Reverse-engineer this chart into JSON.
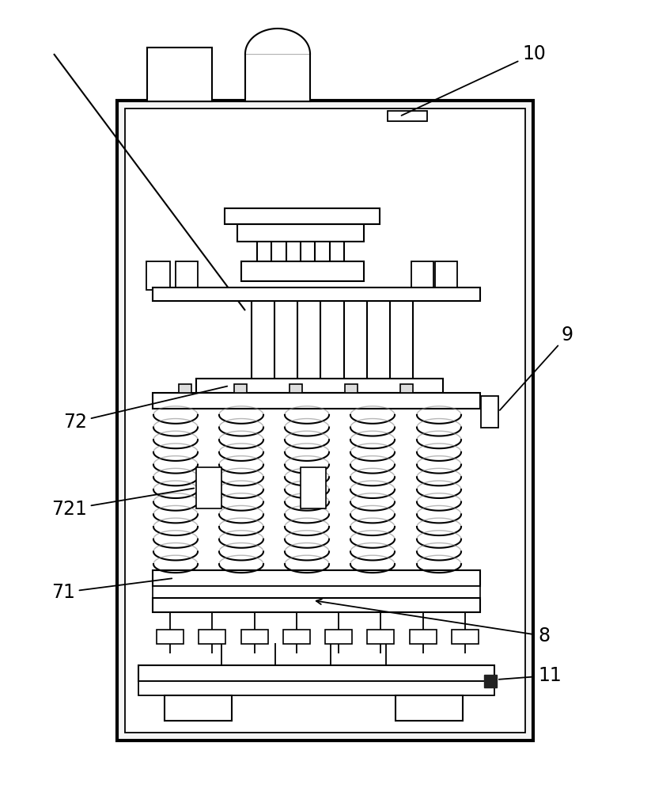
{
  "bg_color": "#ffffff",
  "lc": "#000000",
  "fig_w": 8.23,
  "fig_h": 10.0,
  "dpi": 100
}
